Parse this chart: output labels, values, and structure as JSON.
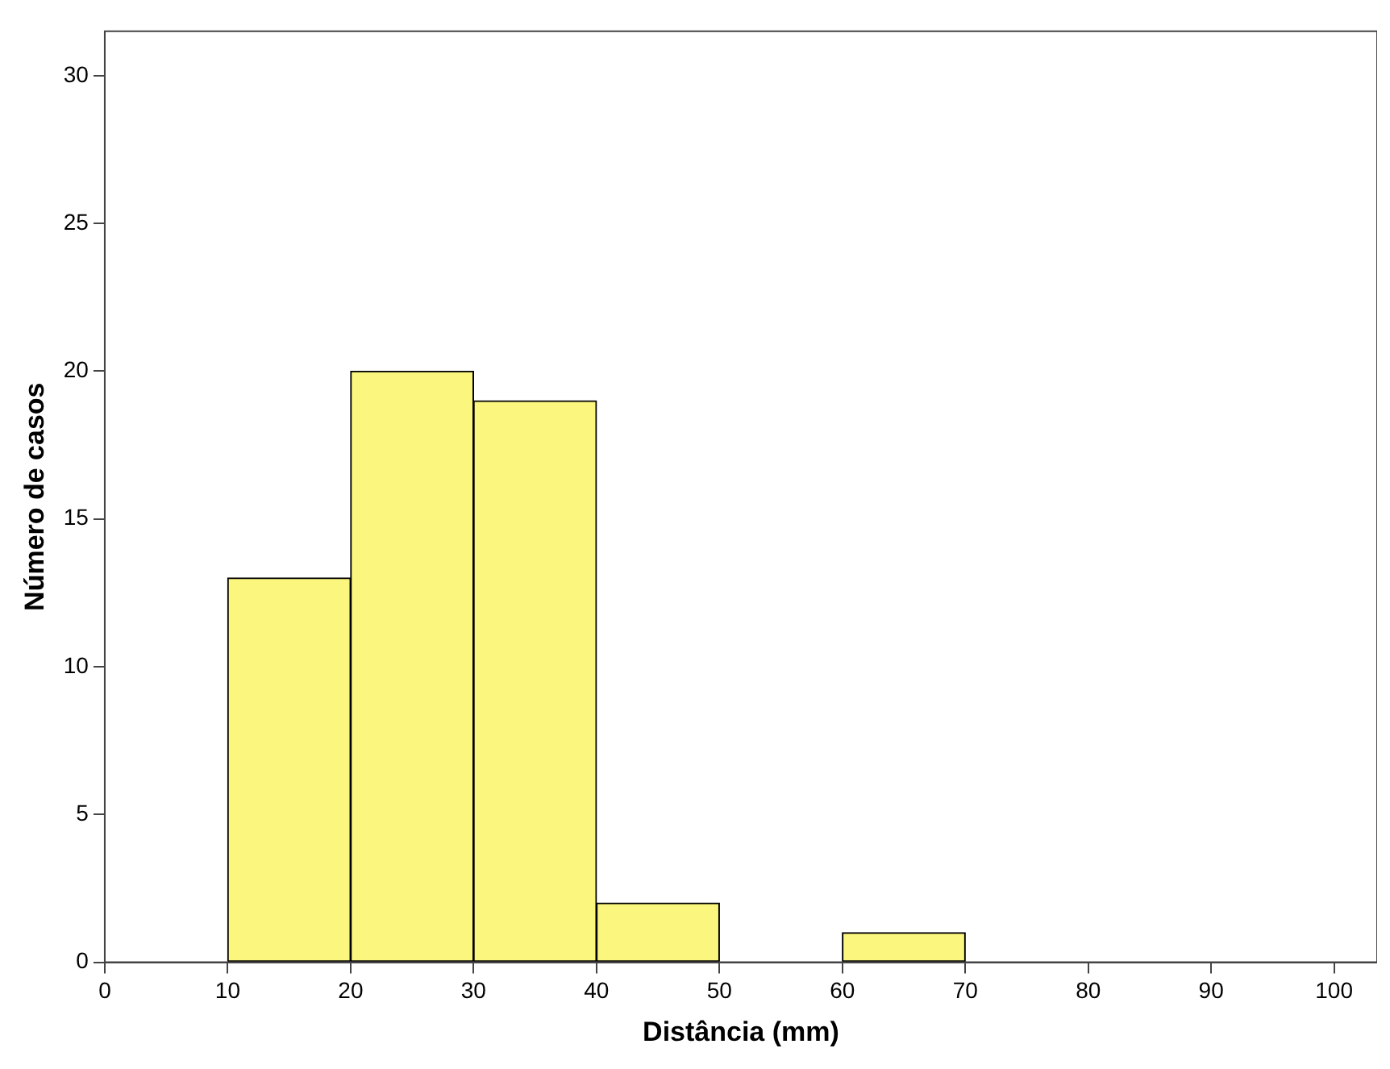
{
  "chart_data": {
    "type": "histogram",
    "xlabel": "Distância (mm)",
    "ylabel": "Número de casos",
    "bins": [
      10,
      20,
      30,
      40,
      50,
      60,
      70
    ],
    "values": [
      13,
      20,
      19,
      2,
      0,
      1
    ],
    "color": "#fbf67e",
    "xlim": [
      0,
      103.5
    ],
    "ylim": [
      0,
      31.5
    ],
    "xticks": [
      0,
      10,
      20,
      30,
      40,
      50,
      60,
      70,
      80,
      90,
      100
    ],
    "yticks": [
      0,
      5,
      10,
      15,
      20,
      25,
      30
    ],
    "grid": false,
    "legend": false
  }
}
